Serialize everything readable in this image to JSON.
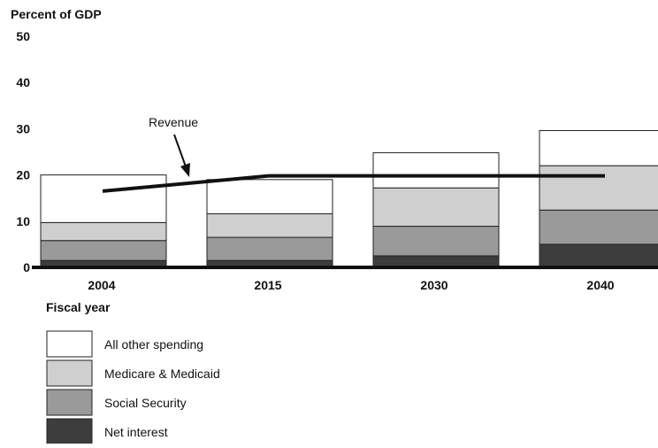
{
  "chart_data": {
    "type": "bar",
    "stacked": true,
    "ylabel": "Percent of GDP",
    "xlabel": "Fiscal year",
    "ylim": [
      0,
      50
    ],
    "yticks": [
      "0",
      "10",
      "20",
      "30",
      "40",
      "50"
    ],
    "grid": false,
    "categories": [
      "2004",
      "2015",
      "2030",
      "2040"
    ],
    "series": [
      {
        "name": "Net interest",
        "values": [
          1.5,
          1.5,
          2.5,
          5.0
        ],
        "color": "#3d3d3d"
      },
      {
        "name": "Social Security",
        "values": [
          4.3,
          5.0,
          6.4,
          7.4
        ],
        "color": "#9a9a9a"
      },
      {
        "name": "Medicare & Medicaid",
        "values": [
          3.9,
          5.1,
          8.3,
          9.6
        ],
        "color": "#cfcfcf"
      },
      {
        "name": "All other spending",
        "values": [
          10.3,
          7.4,
          7.6,
          7.6
        ],
        "color": "#ffffff"
      }
    ],
    "line": {
      "name": "Revenue",
      "points": [
        [
          0,
          16.5
        ],
        [
          1,
          19.8
        ],
        [
          2,
          19.8
        ],
        [
          3,
          19.8
        ]
      ]
    },
    "legend_order": [
      "All other spending",
      "Medicare & Medicaid",
      "Social Security",
      "Net interest"
    ],
    "legend_position": "bottom-left"
  }
}
